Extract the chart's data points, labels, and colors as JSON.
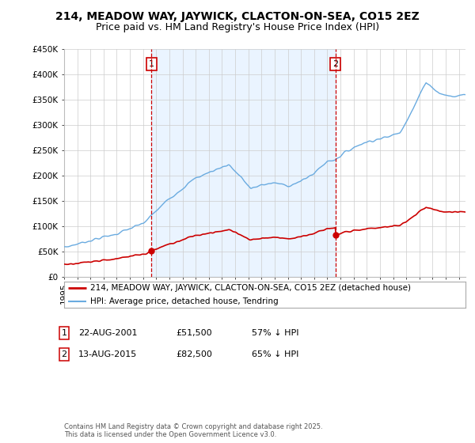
{
  "title": "214, MEADOW WAY, JAYWICK, CLACTON-ON-SEA, CO15 2EZ",
  "subtitle": "Price paid vs. HM Land Registry's House Price Index (HPI)",
  "ylim": [
    0,
    450000
  ],
  "yticks": [
    0,
    50000,
    100000,
    150000,
    200000,
    250000,
    300000,
    350000,
    400000,
    450000
  ],
  "ytick_labels": [
    "£0",
    "£50K",
    "£100K",
    "£150K",
    "£200K",
    "£250K",
    "£300K",
    "£350K",
    "£400K",
    "£450K"
  ],
  "xlim_start": 1995.0,
  "xlim_end": 2025.5,
  "hpi_color": "#6aabe0",
  "hpi_fill_color": "#ddeeff",
  "price_color": "#cc0000",
  "vline_color": "#cc0000",
  "point1_date_num": 2001.64,
  "point1_price": 51500,
  "point1_label": "1",
  "point2_date_num": 2015.62,
  "point2_price": 82500,
  "point2_label": "2",
  "legend_line1": "214, MEADOW WAY, JAYWICK, CLACTON-ON-SEA, CO15 2EZ (detached house)",
  "legend_line2": "HPI: Average price, detached house, Tendring",
  "footnote": "Contains HM Land Registry data © Crown copyright and database right 2025.\nThis data is licensed under the Open Government Licence v3.0.",
  "bg_color": "#ffffff",
  "grid_color": "#cccccc",
  "title_fontsize": 10,
  "subtitle_fontsize": 9,
  "tick_fontsize": 7.5,
  "label1_box_color": "#cc0000",
  "ann1_date": "22-AUG-2001",
  "ann1_price": "£51,500",
  "ann1_pct": "57% ↓ HPI",
  "ann2_date": "13-AUG-2015",
  "ann2_price": "£82,500",
  "ann2_pct": "65% ↓ HPI"
}
